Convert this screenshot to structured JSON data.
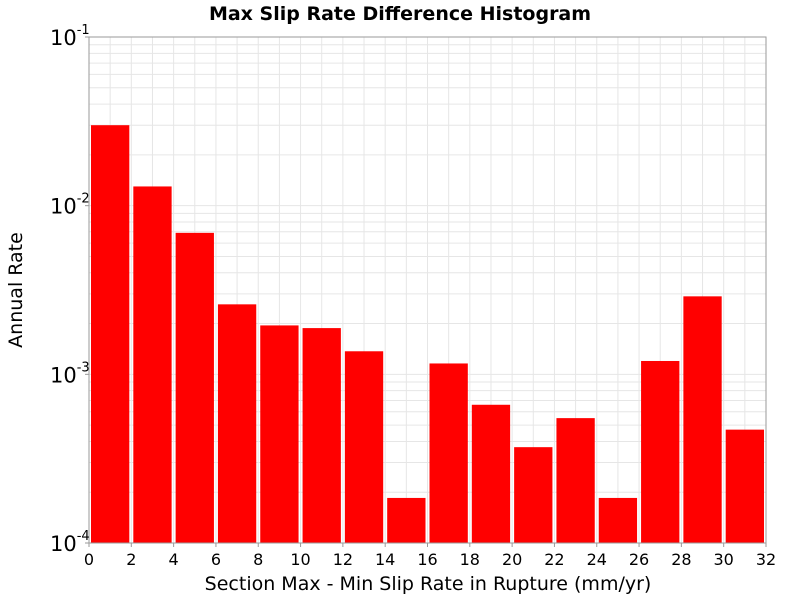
{
  "chart_data": {
    "type": "bar",
    "title": "Max Slip Rate Difference Histogram",
    "xlabel": "Section Max - Min Slip Rate in Rupture (mm/yr)",
    "ylabel": "Annual Rate",
    "x_ticks": [
      "0",
      "2",
      "4",
      "6",
      "8",
      "10",
      "12",
      "14",
      "16",
      "18",
      "20",
      "22",
      "24",
      "26",
      "28",
      "30",
      "32"
    ],
    "y_ticks": [
      {
        "base": "10",
        "exp": "-1",
        "value": 0.1
      },
      {
        "base": "10",
        "exp": "-2",
        "value": 0.01
      },
      {
        "base": "10",
        "exp": "-3",
        "value": 0.001
      },
      {
        "base": "10",
        "exp": "-4",
        "value": 0.0001
      }
    ],
    "xlim": [
      0,
      32
    ],
    "ylim": [
      0.0001,
      0.1
    ],
    "y_scale": "log",
    "bin_width": 2,
    "bins": [
      {
        "x0": 0,
        "x1": 2,
        "value": 0.03
      },
      {
        "x0": 2,
        "x1": 4,
        "value": 0.013
      },
      {
        "x0": 4,
        "x1": 6,
        "value": 0.0069
      },
      {
        "x0": 6,
        "x1": 8,
        "value": 0.0026
      },
      {
        "x0": 8,
        "x1": 10,
        "value": 0.00195
      },
      {
        "x0": 10,
        "x1": 12,
        "value": 0.00188
      },
      {
        "x0": 12,
        "x1": 14,
        "value": 0.00137
      },
      {
        "x0": 14,
        "x1": 16,
        "value": 0.000185
      },
      {
        "x0": 16,
        "x1": 18,
        "value": 0.00116
      },
      {
        "x0": 18,
        "x1": 20,
        "value": 0.00066
      },
      {
        "x0": 20,
        "x1": 22,
        "value": 0.00037
      },
      {
        "x0": 22,
        "x1": 24,
        "value": 0.00055
      },
      {
        "x0": 24,
        "x1": 26,
        "value": 0.000185
      },
      {
        "x0": 26,
        "x1": 28,
        "value": 0.0012
      },
      {
        "x0": 28,
        "x1": 30,
        "value": 0.0029
      },
      {
        "x0": 30,
        "x1": 32,
        "value": 0.00047
      }
    ],
    "bar_color": "#ff0000",
    "grid": true,
    "grid_color": "#e6e6e6",
    "legend": "none"
  }
}
